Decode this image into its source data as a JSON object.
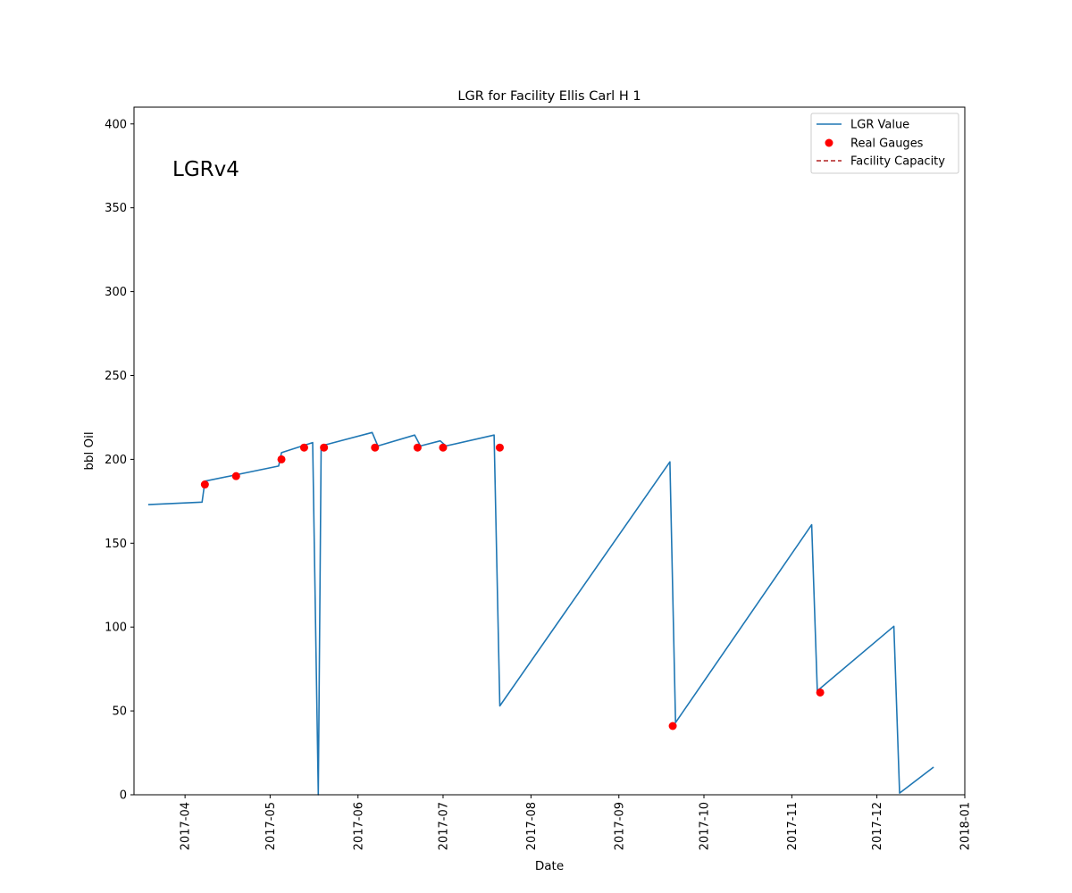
{
  "chart_data": {
    "type": "line",
    "title": "LGR for Facility Ellis Carl H 1",
    "xlabel": "Date",
    "ylabel": "bbl Oil",
    "annotation": "LGRv4",
    "xlim": [
      "2017-03-14",
      "2018-01-01"
    ],
    "ylim": [
      0,
      410
    ],
    "yticks": [
      0,
      50,
      100,
      150,
      200,
      250,
      300,
      350,
      400
    ],
    "xticks": [
      "2017-04-01",
      "2017-05-01",
      "2017-06-01",
      "2017-07-01",
      "2017-08-01",
      "2017-09-01",
      "2017-10-01",
      "2017-11-01",
      "2017-12-01",
      "2018-01-01"
    ],
    "xtick_labels": [
      "2017-04",
      "2017-05",
      "2017-06",
      "2017-07",
      "2017-08",
      "2017-09",
      "2017-10",
      "2017-11",
      "2017-12",
      "2018-01"
    ],
    "grid": false,
    "legend_position": "top-right",
    "legend": [
      "LGR Value",
      "Real Gauges",
      "Facility Capacity"
    ],
    "colors": {
      "line": "#1f77b4",
      "gauges": "#ff0000",
      "capacity": "#b22222"
    },
    "series": [
      {
        "name": "LGR Value",
        "kind": "line",
        "x": [
          "2017-03-19",
          "2017-04-07",
          "2017-04-08",
          "2017-05-04",
          "2017-05-05",
          "2017-05-16",
          "2017-05-18",
          "2017-05-19",
          "2017-06-06",
          "2017-06-08",
          "2017-06-21",
          "2017-06-23",
          "2017-06-30",
          "2017-07-02",
          "2017-07-19",
          "2017-07-21",
          "2017-09-19",
          "2017-09-21",
          "2017-11-08",
          "2017-11-10",
          "2017-12-07",
          "2017-12-09",
          "2017-12-21"
        ],
        "y": [
          173,
          174.5,
          187,
          196,
          204,
          210,
          0,
          208,
          216,
          208,
          214.5,
          208,
          211,
          208,
          214.5,
          53,
          198.5,
          43,
          161,
          62,
          100.5,
          1,
          16.5
        ]
      },
      {
        "name": "Real Gauges",
        "kind": "scatter",
        "x": [
          "2017-04-08",
          "2017-04-19",
          "2017-05-05",
          "2017-05-13",
          "2017-05-20",
          "2017-06-07",
          "2017-06-22",
          "2017-07-01",
          "2017-07-21",
          "2017-09-20",
          "2017-11-11"
        ],
        "y": [
          185,
          190,
          200,
          207,
          207,
          207,
          207,
          207,
          207,
          41,
          61
        ]
      },
      {
        "name": "Facility Capacity",
        "kind": "dashed-line",
        "x": [],
        "y": []
      }
    ]
  }
}
